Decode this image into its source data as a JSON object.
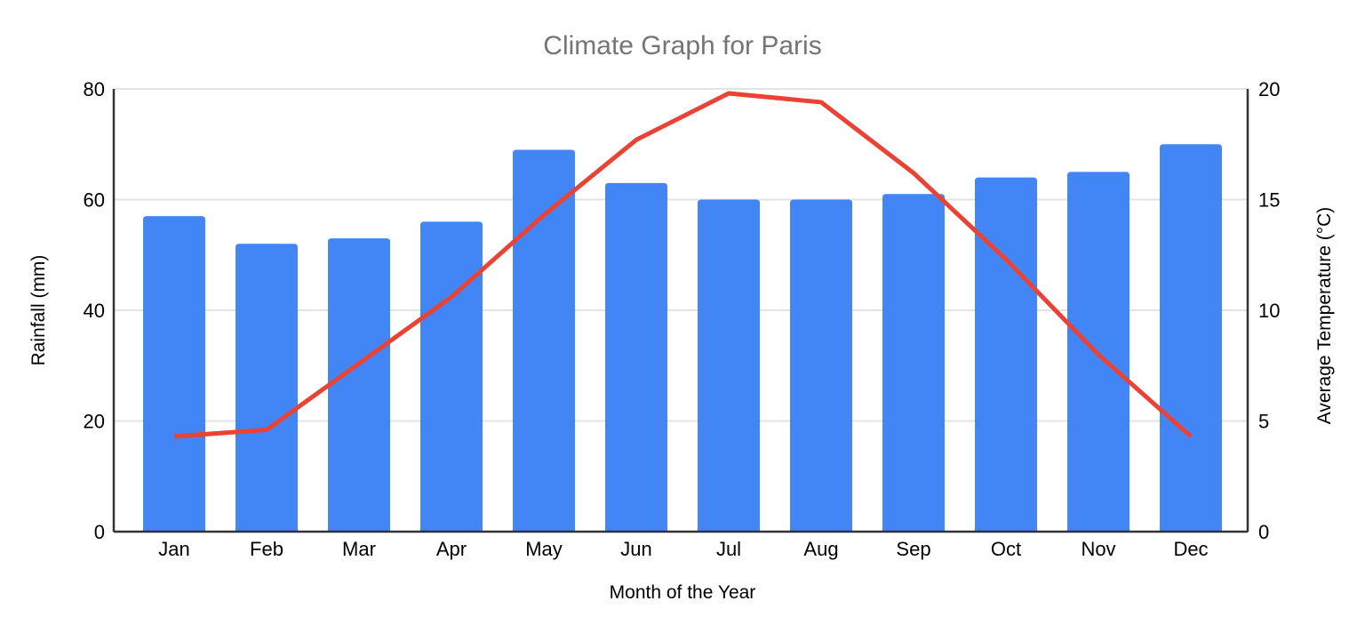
{
  "chart_data": {
    "type": "combo",
    "title": "Climate Graph for Paris",
    "xlabel": "Month of the Year",
    "ylabel_left": "Rainfall (mm)",
    "ylabel_right": "Average Temperature (°C)",
    "categories": [
      "Jan",
      "Feb",
      "Mar",
      "Apr",
      "May",
      "Jun",
      "Jul",
      "Aug",
      "Sep",
      "Oct",
      "Nov",
      "Dec"
    ],
    "series": [
      {
        "name": "Rainfall (mm)",
        "type": "bar",
        "axis": "left",
        "color": "#4285F4",
        "values": [
          57,
          52,
          53,
          56,
          69,
          63,
          60,
          60,
          61,
          64,
          65,
          70
        ]
      },
      {
        "name": "Average Temperature (°C)",
        "type": "line",
        "axis": "right",
        "color": "#EA4335",
        "values": [
          4.3,
          4.6,
          7.6,
          10.6,
          14.3,
          17.7,
          19.8,
          19.4,
          16.2,
          12.3,
          8.0,
          4.3
        ]
      }
    ],
    "y_left_axis": {
      "min": 0,
      "max": 80,
      "ticks": [
        0,
        20,
        40,
        60,
        80
      ]
    },
    "y_right_axis": {
      "min": 0,
      "max": 20,
      "ticks": [
        0,
        5,
        10,
        15,
        20
      ]
    },
    "grid": true,
    "legend": "none",
    "colors": {
      "title_text": "#757575",
      "axis_text": "#000000",
      "gridline": "#e3e3e3",
      "axis_line": "#333333",
      "background": "#ffffff"
    }
  }
}
